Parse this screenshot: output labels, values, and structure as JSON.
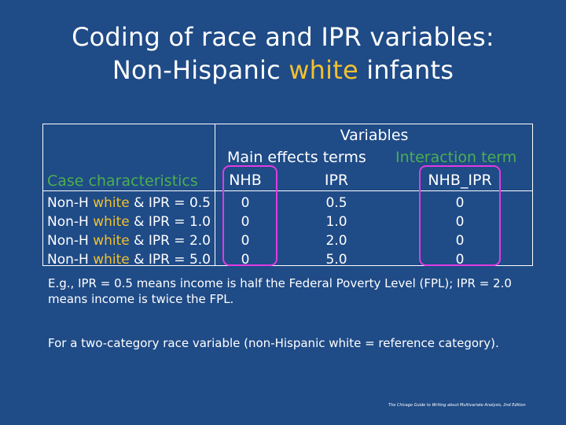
{
  "title": {
    "line1": "Coding of race and IPR variables:",
    "line2_prefix": "Non-Hispanic ",
    "line2_highlight": "white",
    "line2_suffix": " infants"
  },
  "table": {
    "variables_header": "Variables",
    "main_effects_header": "Main effects terms",
    "interaction_header": "Interaction term",
    "case_header": "Case characteristics",
    "col_nhb": "NHB",
    "col_ipr": "IPR",
    "col_interaction": "NHB_IPR",
    "rows": [
      {
        "prefix": "Non-H ",
        "highlight": "white",
        "suffix": " & IPR = 0.5",
        "nhb": "0",
        "ipr": "0.5",
        "nhb_ipr": "0"
      },
      {
        "prefix": "Non-H ",
        "highlight": "white",
        "suffix": " & IPR = 1.0",
        "nhb": "0",
        "ipr": "1.0",
        "nhb_ipr": "0"
      },
      {
        "prefix": "Non-H ",
        "highlight": "white",
        "suffix": " & IPR = 2.0",
        "nhb": "0",
        "ipr": "2.0",
        "nhb_ipr": "0"
      },
      {
        "prefix": "Non-H ",
        "highlight": "white",
        "suffix": " & IPR = 5.0",
        "nhb": "0",
        "ipr": "5.0",
        "nhb_ipr": "0"
      }
    ]
  },
  "notes": {
    "note1": "E.g., IPR = 0.5 means income is half the Federal Poverty Level (FPL); IPR = 2.0 means income is twice the FPL.",
    "note2": "For a two-category race variable (non-Hispanic white = reference category)."
  },
  "footer": "The Chicago Guide to Writing about Multivariate Analysis, 2nd Edition",
  "colors": {
    "background": "#1f4b87",
    "highlight_yellow": "#f2c12e",
    "green": "#4caf50",
    "magenta_box": "#e23be0"
  }
}
